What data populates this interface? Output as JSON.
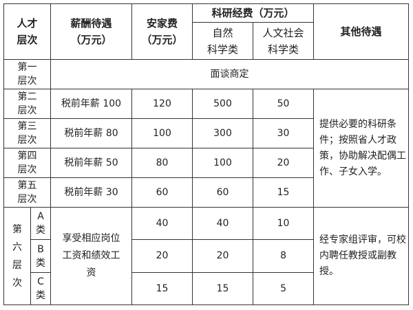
{
  "header": {
    "level": "人才\n层次",
    "salary": "薪酬待遇\n（万元）",
    "settle": "安家费\n（万元）",
    "research": "科研经费（万元）",
    "natural": "自然\n科学类",
    "humanities": "人文社会\n科学类",
    "other": "其他待遇"
  },
  "rows": [
    {
      "level": "第一\n层次",
      "merged": "面谈商定"
    },
    {
      "level": "第二\n层次",
      "salary": "税前年薪 100",
      "settle": "120",
      "natural": "500",
      "humanities": "50"
    },
    {
      "level": "第三\n层次",
      "salary": "税前年薪 80",
      "settle": "100",
      "natural": "300",
      "humanities": "30"
    },
    {
      "level": "第四\n层次",
      "salary": "税前年薪 50",
      "settle": "80",
      "natural": "100",
      "humanities": "20"
    },
    {
      "level": "第五\n层次",
      "salary": "税前年薪 30",
      "settle": "60",
      "natural": "60",
      "humanities": "15"
    }
  ],
  "other_2_5": "提供必要的科研条件；按照省人才政策，协助解决配偶工作、子女入学。",
  "sixth": {
    "level": "第\n六\n层\n次",
    "salary": "享受相应岗位工资和绩效工资",
    "other": "经专家组评审，可校内聘任教授或副教授。",
    "classes": [
      {
        "name": "A\n类",
        "settle": "40",
        "natural": "40",
        "humanities": "10"
      },
      {
        "name": "B\n类",
        "settle": "20",
        "natural": "20",
        "humanities": "8"
      },
      {
        "name": "C\n类",
        "settle": "15",
        "natural": "15",
        "humanities": "5"
      }
    ]
  }
}
